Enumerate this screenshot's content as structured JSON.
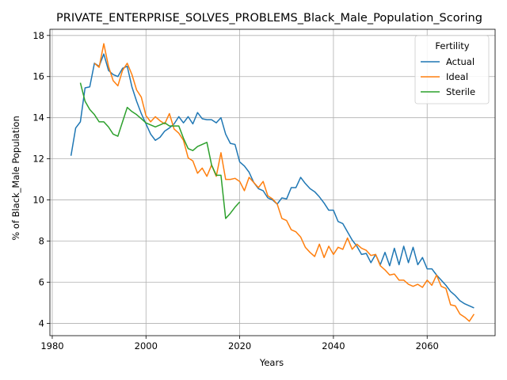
{
  "chart_data": {
    "type": "line",
    "title": "PRIVATE_ENTERPRISE_SOLVES_PROBLEMS_Black_Male_Population_Scoring",
    "xlabel": "Years",
    "ylabel": "% of Black_Male Population",
    "xlim": [
      1979.5,
      2074.5
    ],
    "ylim": [
      3.4,
      18.3
    ],
    "xticks": [
      1980,
      2000,
      2020,
      2040,
      2060
    ],
    "yticks": [
      4,
      6,
      8,
      10,
      12,
      14,
      16,
      18
    ],
    "grid": true,
    "legend": {
      "title": "Fertility",
      "placement": "top-right"
    },
    "series": [
      {
        "name": "Actual",
        "color": "#1f77b4",
        "x": [
          1984,
          1985,
          1986,
          1987,
          1988,
          1989,
          1990,
          1991,
          1992,
          1993,
          1994,
          1995,
          1996,
          1997,
          1998,
          1999,
          2000,
          2001,
          2002,
          2003,
          2004,
          2005,
          2006,
          2007,
          2008,
          2009,
          2010,
          2011,
          2012,
          2013,
          2014,
          2015,
          2016,
          2017,
          2018,
          2019,
          2020,
          2021,
          2022,
          2023,
          2024,
          2025,
          2026,
          2027,
          2028,
          2029,
          2030,
          2031,
          2032,
          2033,
          2034,
          2035,
          2036,
          2037,
          2038,
          2039,
          2040,
          2041,
          2042,
          2043,
          2044,
          2045,
          2046,
          2047,
          2048,
          2049,
          2050,
          2051,
          2052,
          2053,
          2054,
          2055,
          2056,
          2057,
          2058,
          2059,
          2060,
          2061,
          2062,
          2063,
          2064,
          2065,
          2066,
          2067,
          2068,
          2069,
          2070
        ],
        "values": [
          12.15,
          13.5,
          13.8,
          15.45,
          15.5,
          16.65,
          16.5,
          17.1,
          16.3,
          16.1,
          16.0,
          16.4,
          16.5,
          15.5,
          14.8,
          14.2,
          13.7,
          13.2,
          12.9,
          13.05,
          13.35,
          13.5,
          13.7,
          14.05,
          13.75,
          14.05,
          13.7,
          14.25,
          13.95,
          13.9,
          13.9,
          13.75,
          14.0,
          13.2,
          12.75,
          12.7,
          11.85,
          11.65,
          11.35,
          10.85,
          10.55,
          10.45,
          10.1,
          10.0,
          9.8,
          10.1,
          10.05,
          10.6,
          10.6,
          11.1,
          10.8,
          10.55,
          10.4,
          10.15,
          9.85,
          9.5,
          9.5,
          8.95,
          8.85,
          8.45,
          8.05,
          7.75,
          7.35,
          7.4,
          6.95,
          7.35,
          6.85,
          7.45,
          6.8,
          7.65,
          6.85,
          7.75,
          6.95,
          7.7,
          6.85,
          7.2,
          6.65,
          6.65,
          6.35,
          6.1,
          5.85,
          5.55,
          5.35,
          5.1,
          4.95,
          4.85,
          4.75
        ]
      },
      {
        "name": "Ideal",
        "color": "#ff7f0e",
        "x": [
          1989,
          1990,
          1991,
          1992,
          1993,
          1994,
          1995,
          1996,
          1997,
          1998,
          1999,
          2000,
          2001,
          2002,
          2003,
          2004,
          2005,
          2006,
          2007,
          2008,
          2009,
          2010,
          2011,
          2012,
          2013,
          2014,
          2015,
          2016,
          2017,
          2018,
          2019,
          2020,
          2021,
          2022,
          2023,
          2024,
          2025,
          2026,
          2027,
          2028,
          2029,
          2030,
          2031,
          2032,
          2033,
          2034,
          2035,
          2036,
          2037,
          2038,
          2039,
          2040,
          2041,
          2042,
          2043,
          2044,
          2045,
          2046,
          2047,
          2048,
          2049,
          2050,
          2051,
          2052,
          2053,
          2054,
          2055,
          2056,
          2057,
          2058,
          2059,
          2060,
          2061,
          2062,
          2063,
          2064,
          2065,
          2066,
          2067,
          2068,
          2069,
          2070
        ],
        "values": [
          16.65,
          16.45,
          17.6,
          16.5,
          15.8,
          15.55,
          16.3,
          16.65,
          16.1,
          15.35,
          15.0,
          14.1,
          13.8,
          14.05,
          13.85,
          13.7,
          14.2,
          13.45,
          13.25,
          12.9,
          12.05,
          11.9,
          11.3,
          11.55,
          11.15,
          11.7,
          11.15,
          12.3,
          11.0,
          11.0,
          11.05,
          10.9,
          10.45,
          11.1,
          10.85,
          10.6,
          10.9,
          10.2,
          10.05,
          9.8,
          9.1,
          9.0,
          8.55,
          8.45,
          8.2,
          7.7,
          7.45,
          7.25,
          7.85,
          7.2,
          7.75,
          7.35,
          7.7,
          7.6,
          8.15,
          7.6,
          7.85,
          7.65,
          7.55,
          7.3,
          7.35,
          6.8,
          6.6,
          6.35,
          6.4,
          6.1,
          6.1,
          5.9,
          5.8,
          5.9,
          5.75,
          6.1,
          5.85,
          6.35,
          5.8,
          5.7,
          4.9,
          4.85,
          4.45,
          4.3,
          4.1,
          4.45
        ]
      },
      {
        "name": "Sterile",
        "color": "#2ca02c",
        "x": [
          1986,
          1987,
          1988,
          1989,
          1990,
          1991,
          1992,
          1993,
          1994,
          1995,
          1996,
          1997,
          1998,
          1999,
          2000,
          2001,
          2002,
          2003,
          2004,
          2005,
          2006,
          2007,
          2008,
          2009,
          2010,
          2011,
          2012,
          2013,
          2014,
          2015,
          2016,
          2017,
          2018,
          2019,
          2020
        ],
        "values": [
          15.7,
          14.8,
          14.4,
          14.15,
          13.8,
          13.8,
          13.55,
          13.2,
          13.1,
          13.8,
          14.5,
          14.3,
          14.15,
          13.95,
          13.75,
          13.65,
          13.55,
          13.65,
          13.75,
          13.6,
          13.6,
          13.6,
          13.0,
          12.5,
          12.4,
          12.6,
          12.7,
          12.8,
          11.7,
          11.2,
          11.2,
          9.1,
          9.35,
          9.65,
          9.9
        ]
      }
    ]
  }
}
